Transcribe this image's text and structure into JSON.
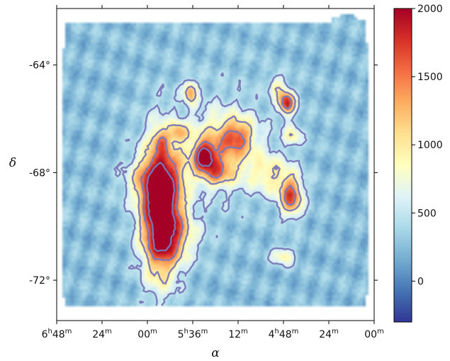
{
  "chart_data": {
    "type": "heatmap",
    "title": "",
    "xlabel": "α",
    "ylabel": "δ",
    "x_ticks": [
      {
        "h": "6",
        "m": "48"
      },
      {
        "h": "",
        "m": "24"
      },
      {
        "h": "",
        "m": "00"
      },
      {
        "h": "5",
        "m": "36"
      },
      {
        "h": "",
        "m": "12"
      },
      {
        "h": "4",
        "m": "48"
      },
      {
        "h": "",
        "m": "24"
      },
      {
        "h": "",
        "m": "00"
      }
    ],
    "x_tick_hours": [
      6.8,
      6.4,
      6.0,
      5.6,
      5.2,
      4.8,
      4.4,
      4.0
    ],
    "xlim": [
      6.8,
      4.0
    ],
    "y_ticks": [
      "-64°",
      "-68°",
      "-72°"
    ],
    "y_tick_values": [
      -64,
      -68,
      -72
    ],
    "ylim": [
      -73.5,
      -61.9
    ],
    "colorbar": {
      "range": [
        -300,
        2000
      ],
      "ticks": [
        "0",
        "500",
        "1000",
        "1500",
        "2000"
      ],
      "tick_values": [
        0,
        500,
        1000,
        1500,
        2000
      ],
      "colormap": "RdYlBu_r"
    },
    "contour_levels": [
      500,
      1000,
      1500,
      2000
    ],
    "contour_color": "#7a78b8",
    "sources": [
      {
        "ra": 5.88,
        "dec": -69.4,
        "amp": 2100,
        "sigma_ra": 0.12,
        "sigma_dec": 1.7
      },
      {
        "ra": 5.95,
        "dec": -68.3,
        "amp": 700,
        "sigma_ra": 0.17,
        "sigma_dec": 0.6
      },
      {
        "ra": 5.75,
        "dec": -70.3,
        "amp": 600,
        "sigma_ra": 0.16,
        "sigma_dec": 0.7
      },
      {
        "ra": 5.5,
        "dec": -67.4,
        "amp": 1450,
        "sigma_ra": 0.06,
        "sigma_dec": 0.3
      },
      {
        "ra": 5.35,
        "dec": -67.1,
        "amp": 900,
        "sigma_ra": 0.22,
        "sigma_dec": 0.9
      },
      {
        "ra": 5.4,
        "dec": -68.0,
        "amp": 700,
        "sigma_ra": 0.1,
        "sigma_dec": 0.35
      },
      {
        "ra": 5.62,
        "dec": -65.0,
        "amp": 1050,
        "sigma_ra": 0.04,
        "sigma_dec": 0.3
      },
      {
        "ra": 5.2,
        "dec": -66.6,
        "amp": 700,
        "sigma_ra": 0.09,
        "sigma_dec": 0.4
      },
      {
        "ra": 4.77,
        "dec": -65.4,
        "amp": 1600,
        "sigma_ra": 0.05,
        "sigma_dec": 0.3
      },
      {
        "ra": 4.86,
        "dec": -64.8,
        "amp": 600,
        "sigma_ra": 0.05,
        "sigma_dec": 0.3
      },
      {
        "ra": 4.72,
        "dec": -66.6,
        "amp": 650,
        "sigma_ra": 0.05,
        "sigma_dec": 0.28
      },
      {
        "ra": 4.73,
        "dec": -68.9,
        "amp": 1350,
        "sigma_ra": 0.07,
        "sigma_dec": 0.5
      },
      {
        "ra": 4.9,
        "dec": -68.1,
        "amp": 600,
        "sigma_ra": 0.13,
        "sigma_dec": 0.5
      },
      {
        "ra": 5.72,
        "dec": -66.5,
        "amp": 650,
        "sigma_ra": 0.05,
        "sigma_dec": 0.25
      },
      {
        "ra": 5.88,
        "dec": -66.8,
        "amp": 600,
        "sigma_ra": 0.05,
        "sigma_dec": 0.28
      },
      {
        "ra": 4.8,
        "dec": -71.1,
        "amp": 650,
        "sigma_ra": 0.07,
        "sigma_dec": 0.25
      }
    ]
  }
}
